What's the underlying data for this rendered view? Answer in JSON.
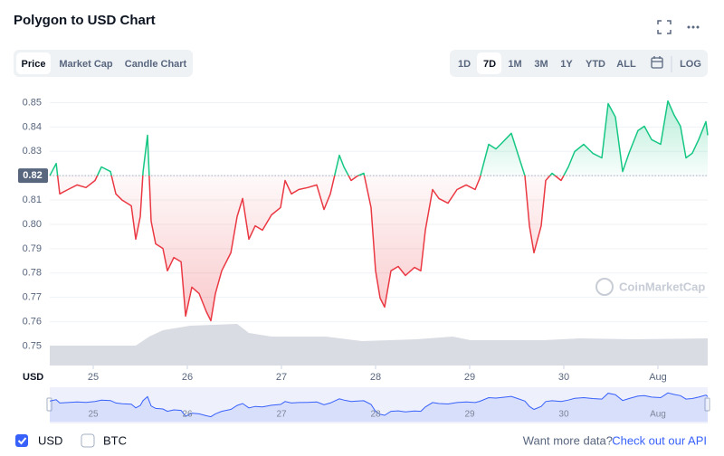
{
  "ui": {
    "title": "Polygon to USD Chart",
    "tabs": [
      "Price",
      "Market Cap",
      "Candle Chart"
    ],
    "ranges": [
      "1D",
      "7D",
      "1M",
      "3M",
      "1Y",
      "YTD",
      "ALL"
    ],
    "log": "LOG",
    "legend": [
      "USD",
      "BTC"
    ],
    "footer_text": "Want more data?",
    "footer_link": "Check out our API",
    "watermark": "CoinMarketCap"
  },
  "chart_data": {
    "type": "line",
    "x_label": "USD",
    "x": [
      -0.462,
      -0.394,
      -0.356,
      -0.269,
      -0.173,
      -0.077,
      0.019,
      0.087,
      0.183,
      0.24,
      0.308,
      0.404,
      0.452,
      0.5,
      0.529,
      0.577,
      0.615,
      0.663,
      0.74,
      0.788,
      0.856,
      0.933,
      0.981,
      1.048,
      1.125,
      1.202,
      1.25,
      1.298,
      1.365,
      1.462,
      1.529,
      1.587,
      1.654,
      1.721,
      1.798,
      1.894,
      1.99,
      2.038,
      2.106,
      2.183,
      2.279,
      2.375,
      2.452,
      2.519,
      2.615,
      2.663,
      2.74,
      2.808,
      2.875,
      2.952,
      3.0,
      3.048,
      3.096,
      3.163,
      3.24,
      3.317,
      3.413,
      3.481,
      3.529,
      3.606,
      3.673,
      3.769,
      3.865,
      3.962,
      4.058,
      4.106,
      4.202,
      4.279,
      4.346,
      4.442,
      4.51,
      4.587,
      4.635,
      4.683,
      4.76,
      4.808,
      4.875,
      4.971,
      5.048,
      5.115,
      5.212,
      5.308,
      5.404,
      5.471,
      5.548,
      5.625,
      5.692,
      5.788,
      5.856,
      5.933,
      6.029,
      6.106,
      6.173,
      6.24,
      6.298,
      6.365,
      6.433,
      6.51,
      6.529
    ],
    "values": [
      0.82,
      0.825,
      0.8125,
      0.8143,
      0.8162,
      0.8151,
      0.818,
      0.8236,
      0.8217,
      0.8125,
      0.8099,
      0.8076,
      0.7939,
      0.8032,
      0.8217,
      0.8366,
      0.8013,
      0.792,
      0.7901,
      0.7809,
      0.7864,
      0.7846,
      0.7623,
      0.7742,
      0.7716,
      0.7641,
      0.7604,
      0.7716,
      0.7809,
      0.7883,
      0.8032,
      0.8106,
      0.7939,
      0.7994,
      0.7976,
      0.8039,
      0.8069,
      0.818,
      0.8125,
      0.8143,
      0.8151,
      0.8162,
      0.8061,
      0.8125,
      0.8284,
      0.8236,
      0.818,
      0.8199,
      0.821,
      0.8069,
      0.7809,
      0.7697,
      0.766,
      0.7809,
      0.7827,
      0.779,
      0.7823,
      0.7809,
      0.7976,
      0.8143,
      0.8106,
      0.8087,
      0.8143,
      0.8162,
      0.8143,
      0.8188,
      0.8329,
      0.831,
      0.8336,
      0.8374,
      0.8292,
      0.8199,
      0.7994,
      0.7883,
      0.7994,
      0.818,
      0.821,
      0.818,
      0.8236,
      0.8299,
      0.8329,
      0.8292,
      0.8273,
      0.8496,
      0.8441,
      0.8217,
      0.8292,
      0.8385,
      0.8403,
      0.8348,
      0.8329,
      0.8507,
      0.8448,
      0.8403,
      0.8273,
      0.8292,
      0.8348,
      0.8422,
      0.8366
    ],
    "baseline": 0.82,
    "up_color": "#16c784",
    "down_color": "#ea3943",
    "navigator_color": "#3861fb",
    "xlim": [
      -0.462,
      6.529
    ],
    "xticks": [
      {
        "value": 0,
        "label": "25"
      },
      {
        "value": 1,
        "label": "26"
      },
      {
        "value": 2,
        "label": "27"
      },
      {
        "value": 3,
        "label": "28"
      },
      {
        "value": 4,
        "label": "29"
      },
      {
        "value": 5,
        "label": "30"
      },
      {
        "value": 6,
        "label": "Aug"
      }
    ],
    "ylim": [
      0.742,
      0.855
    ],
    "yticks": [
      0.75,
      0.76,
      0.77,
      0.78,
      0.79,
      {
        "value": 0.8,
        "label": "0.80"
      },
      0.81,
      0.82,
      0.83,
      0.84,
      0.85
    ],
    "grid": true
  }
}
